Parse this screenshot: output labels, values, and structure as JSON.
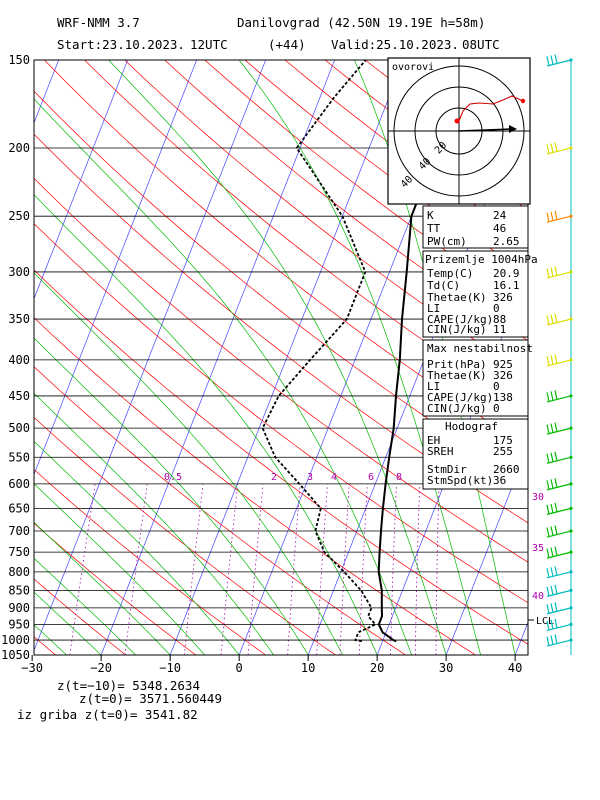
{
  "header": {
    "model": "WRF-NMM 3.7",
    "station": "Danilovgrad (42.50N 19.19E  h=58m)",
    "start": "Start:23.10.2023.",
    "run": "12UTC",
    "lead": "(+44)",
    "valid": "Valid:25.10.2023.",
    "valid_time": "08UTC"
  },
  "colors": {
    "temperature": "#000000",
    "dewpoint": "#000000",
    "isotherm": "#4444ff",
    "dry_adiabat": "#ff0000",
    "moist_adiabat": "#00bb00",
    "mixing_ratio": "#aa00aa",
    "wind_upper": "#00bbbb",
    "wind_mid": "#dddd00",
    "wind_jet": "#ff8800"
  },
  "chart_data": {
    "type": "line",
    "title": "",
    "xlabel": "",
    "ylabel": "",
    "xlim": [
      -30,
      42
    ],
    "ylim": [
      1050,
      150
    ],
    "y_scale": "log",
    "x_ticks": [
      "−30",
      "−20",
      "−10",
      "0",
      "10",
      "20",
      "30",
      "40"
    ],
    "x_tick_values": [
      -30,
      -20,
      -10,
      0,
      10,
      20,
      30,
      40
    ],
    "y_ticks": [
      "150",
      "200",
      "250",
      "300",
      "350",
      "400",
      "450",
      "500",
      "550",
      "600",
      "650",
      "700",
      "750",
      "800",
      "850",
      "900",
      "950",
      "1000",
      "1050"
    ],
    "y_tick_values": [
      150,
      200,
      250,
      300,
      350,
      400,
      450,
      500,
      550,
      600,
      650,
      700,
      750,
      800,
      850,
      900,
      950,
      1000,
      1050
    ],
    "mixing_ratio_labels": [
      "0.5",
      "2",
      "3",
      "4",
      "6",
      "8"
    ],
    "theta_e_labels": [
      "30",
      "35",
      "40"
    ],
    "lcl_label": "LCL",
    "series": [
      {
        "id": "temperature",
        "pressure": [
          1004,
          1000,
          975,
          950,
          925,
          900,
          850,
          800,
          750,
          700,
          650,
          600,
          550,
          500,
          450,
          400,
          350,
          300,
          250,
          200,
          150
        ],
        "x": [
          22,
          21.5,
          19.5,
          18.5,
          18.5,
          18,
          17,
          15.5,
          14.5,
          13.5,
          12.5,
          11.5,
          10.5,
          9.5,
          8.0,
          6.5,
          4.5,
          2.5,
          0,
          0,
          2.5
        ]
      },
      {
        "id": "dewpoint",
        "pressure": [
          1004,
          1000,
          975,
          950,
          925,
          900,
          850,
          800,
          750,
          700,
          650,
          600,
          550,
          500,
          450,
          400,
          350,
          300,
          250,
          200,
          170,
          150
        ],
        "x": [
          17,
          16,
          16,
          18,
          16.5,
          16.5,
          14,
          10.5,
          6.5,
          4,
          3.5,
          -1,
          -6,
          -9.5,
          -9,
          -6.5,
          -3.5,
          -3.5,
          -10,
          -20.5,
          -18,
          -15.5
        ]
      }
    ]
  },
  "hodograph": {
    "label": "ovorovi",
    "ring_labels": [
      "20",
      "40",
      "40"
    ]
  },
  "indices": {
    "top": [
      {
        "k": "K",
        "v": "24"
      },
      {
        "k": "TT",
        "v": "46"
      },
      {
        "k": "PW(cm)",
        "v": "2.65"
      }
    ],
    "surface": {
      "title": "Prizemlje 1004hPa",
      "rows": [
        {
          "k": "Temp(C)",
          "v": "20.9"
        },
        {
          "k": "Td(C)",
          "v": "16.1"
        },
        {
          "k": "Thetae(K)",
          "v": "326"
        },
        {
          "k": "LI",
          "v": "0"
        },
        {
          "k": "CAPE(J/kg)",
          "v": "88"
        },
        {
          "k": "CIN(J/kg)",
          "v": "11"
        }
      ]
    },
    "unstable": {
      "title": "Max nestabilnost",
      "rows": [
        {
          "k": "Prit(hPa)",
          "v": "925"
        },
        {
          "k": "Thetae(K)",
          "v": "326"
        },
        {
          "k": "LI",
          "v": "0"
        },
        {
          "k": "CAPE(J/kg)",
          "v": "138"
        },
        {
          "k": "CIN(J/kg)",
          "v": "0"
        }
      ]
    },
    "hodograf": {
      "title": "Hodograf",
      "rows": [
        {
          "k": "EH",
          "v": "175"
        },
        {
          "k": "SREH",
          "v": "255"
        },
        {
          "k": "StmDir",
          "v": "2660"
        },
        {
          "k": "StmSpd(kt)",
          "v": "36"
        }
      ]
    }
  },
  "footer": {
    "line1": "z(t=−10)= 5348.2634",
    "line2": "z(t=0)=  3571.560449",
    "line3": "iz griba z(t=0)= 3541.82"
  }
}
